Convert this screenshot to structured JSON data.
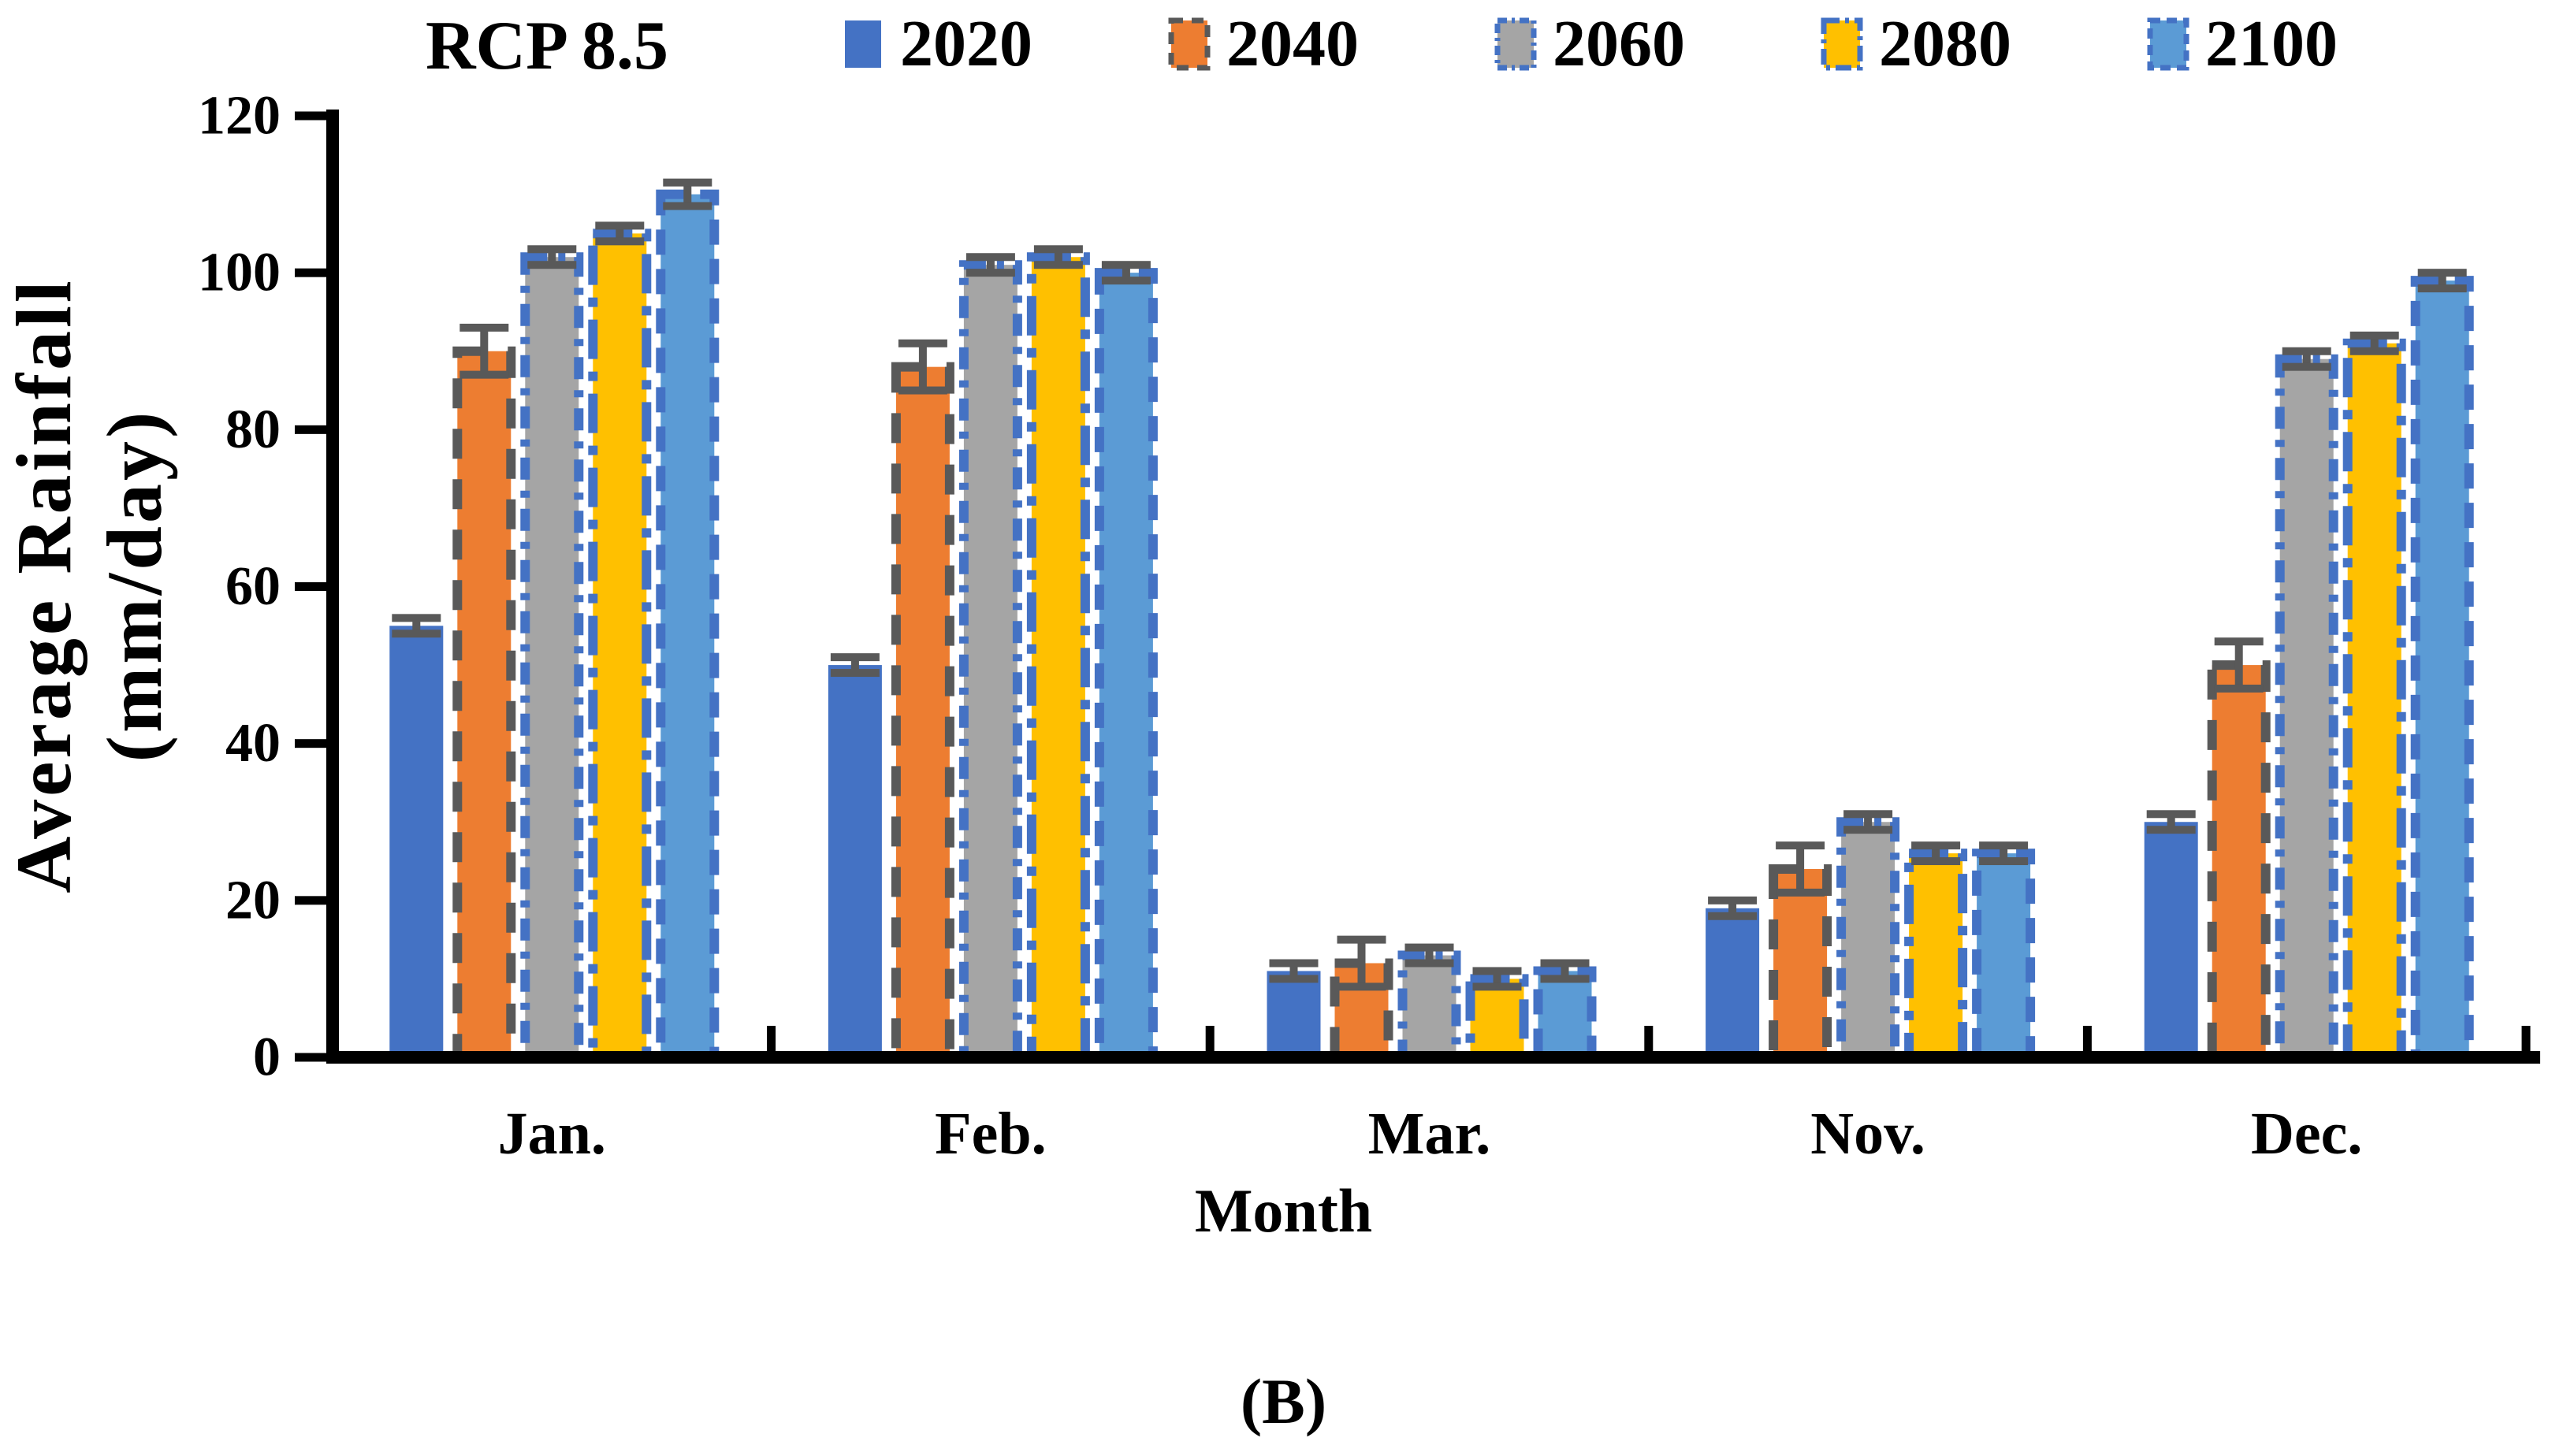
{
  "figure": {
    "panel_label": "(B)",
    "background": "#ffffff"
  },
  "legend": {
    "title": "RCP 8.5",
    "position": "top"
  },
  "chart_data": {
    "type": "bar",
    "title": "RCP 8.5",
    "xlabel": "Month",
    "ylabel_line1": "Average Rainfall",
    "ylabel_line2": "(mm/day)",
    "categories": [
      "Jan.",
      "Feb.",
      "Mar.",
      "Nov.",
      "Dec."
    ],
    "y_ticks": [
      0,
      20,
      40,
      60,
      80,
      100,
      120
    ],
    "ylim": [
      0,
      120
    ],
    "grid": false,
    "legend_position": "top",
    "error_color": "#595959",
    "axis_color": "#000000",
    "series": [
      {
        "name": "2020",
        "color": "#4472C4",
        "border_color": null,
        "border_style": "solid",
        "values": [
          55,
          50,
          11,
          19,
          30
        ],
        "errors": [
          1,
          1,
          1,
          1,
          1
        ]
      },
      {
        "name": "2040",
        "color": "#ED7D31",
        "border_color": "#595959",
        "border_style": "dashed",
        "values": [
          90,
          88,
          12,
          24,
          50
        ],
        "errors": [
          3,
          3,
          3,
          3,
          3
        ]
      },
      {
        "name": "2060",
        "color": "#A5A5A5",
        "border_color": "#4472C4",
        "border_style": "dashdot",
        "values": [
          102,
          101,
          13,
          30,
          89
        ],
        "errors": [
          1,
          1,
          1,
          1,
          1
        ]
      },
      {
        "name": "2080",
        "color": "#FFC000",
        "border_color": "#4472C4",
        "border_style": "longdashdot",
        "values": [
          105,
          102,
          10,
          26,
          91
        ],
        "errors": [
          1,
          1,
          1,
          1,
          1
        ]
      },
      {
        "name": "2100",
        "color": "#5B9BD5",
        "border_color": "#4472C4",
        "border_style": "dash",
        "values": [
          110,
          100,
          11,
          26,
          99
        ],
        "errors": [
          1.5,
          1,
          1,
          1,
          1
        ]
      }
    ]
  }
}
